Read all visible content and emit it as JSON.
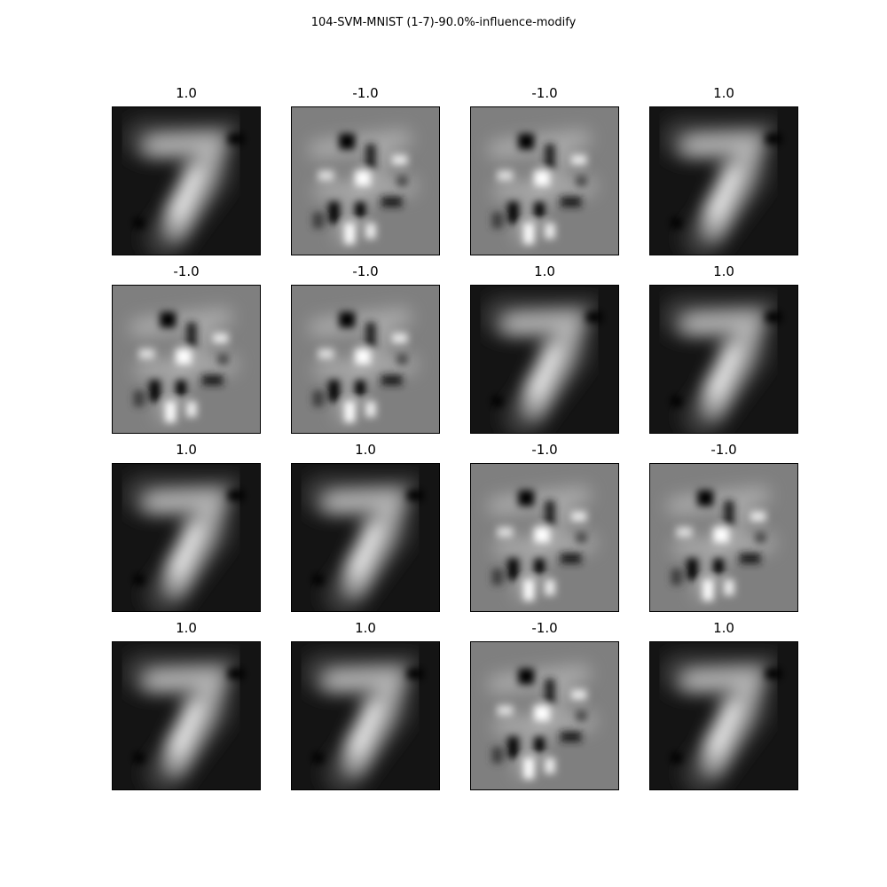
{
  "chart_data": {
    "type": "heatmap",
    "title": "104-SVM-MNIST (1-7)-90.0%-influence-modify",
    "grid": {
      "rows": 4,
      "cols": 4
    },
    "panels": [
      {
        "label": "1.0",
        "value": 1.0
      },
      {
        "label": "-1.0",
        "value": -1.0
      },
      {
        "label": "-1.0",
        "value": -1.0
      },
      {
        "label": "1.0",
        "value": 1.0
      },
      {
        "label": "-1.0",
        "value": -1.0
      },
      {
        "label": "-1.0",
        "value": -1.0
      },
      {
        "label": "1.0",
        "value": 1.0
      },
      {
        "label": "1.0",
        "value": 1.0
      },
      {
        "label": "1.0",
        "value": 1.0
      },
      {
        "label": "1.0",
        "value": 1.0
      },
      {
        "label": "-1.0",
        "value": -1.0
      },
      {
        "label": "-1.0",
        "value": -1.0
      },
      {
        "label": "1.0",
        "value": 1.0
      },
      {
        "label": "1.0",
        "value": 1.0
      },
      {
        "label": "-1.0",
        "value": -1.0
      },
      {
        "label": "1.0",
        "value": 1.0
      }
    ],
    "colormap": "gray",
    "colors": {
      "positive_background": "#141414",
      "negative_background": "#7f7f7f",
      "stroke_light": "#ffffff",
      "stroke_dark": "#000000"
    }
  }
}
